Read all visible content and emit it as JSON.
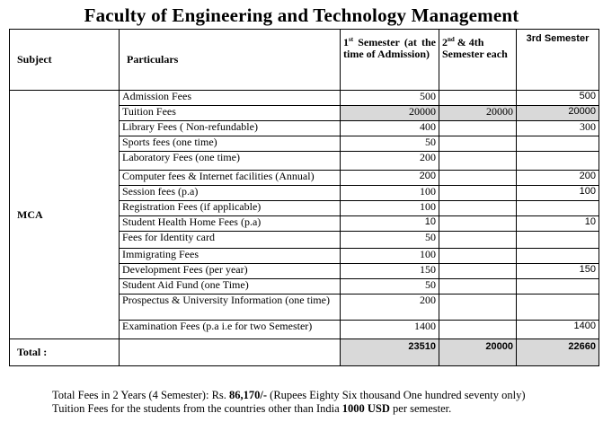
{
  "title": "Faculty of Engineering and Technology Management",
  "headers": {
    "subject": "Subject",
    "particulars": "Particulars",
    "sem1_pre": "1",
    "sem1_sup": "st",
    "sem1_post": " Semester (at the time of Admission)",
    "sem2_pre": "2",
    "sem2_sup": "nd",
    "sem2_post": " & 4th Semester each",
    "sem3": "3rd Semester"
  },
  "subject": "MCA",
  "rows": [
    {
      "label": "Admission Fees",
      "s1": "500",
      "s2": "",
      "s3": "500"
    },
    {
      "label": "Tuition Fees",
      "s1": "20000",
      "s2": "20000",
      "s3": "20000"
    },
    {
      "label": "Library Fees ( Non-refundable)",
      "s1": "400",
      "s2": "",
      "s3": "300"
    },
    {
      "label": "Sports fees (one time)",
      "s1": "50",
      "s2": "",
      "s3": ""
    },
    {
      "label": "Laboratory Fees (one time)",
      "s1": "200",
      "s2": "",
      "s3": ""
    },
    {
      "label": "Computer fees & Internet facilities (Annual)",
      "s1": "200",
      "s2": "",
      "s3": "200"
    },
    {
      "label": "Session fees (p.a)",
      "s1": "100",
      "s2": "",
      "s3": "100"
    },
    {
      "label": "Registration Fees (if applicable)",
      "s1": "100",
      "s2": "",
      "s3": ""
    },
    {
      "label": "Student Health Home Fees (p.a)",
      "s1": "10",
      "s2": "",
      "s3": "10"
    },
    {
      "label": "Fees for Identity card",
      "s1": "50",
      "s2": "",
      "s3": ""
    },
    {
      "label": "Immigrating Fees",
      "s1": "100",
      "s2": "",
      "s3": ""
    },
    {
      "label": "Development Fees (per year)",
      "s1": "150",
      "s2": "",
      "s3": "150"
    },
    {
      "label": "Student Aid Fund (one Time)",
      "s1": "50",
      "s2": "",
      "s3": ""
    },
    {
      "label": "Prospectus & University Information (one time)",
      "s1": "200",
      "s2": "",
      "s3": ""
    },
    {
      "label": "Examination Fees (p.a i.e for two Semester)",
      "s1": "1400",
      "s2": "",
      "s3": "1400"
    }
  ],
  "total": {
    "label": "Total :",
    "s1": "23510",
    "s2": "20000",
    "s3": "22660"
  },
  "notes": {
    "line1_pre": "Total Fees in 2 Years (4 Semester): Rs. ",
    "line1_bold": "86,170/-",
    "line1_post": " (Rupees Eighty Six thousand One hundred seventy only)",
    "line2_pre": "Tuition Fees for the students from the countries other than India ",
    "line2_bold": "1000 USD",
    "line2_post": " per semester."
  }
}
